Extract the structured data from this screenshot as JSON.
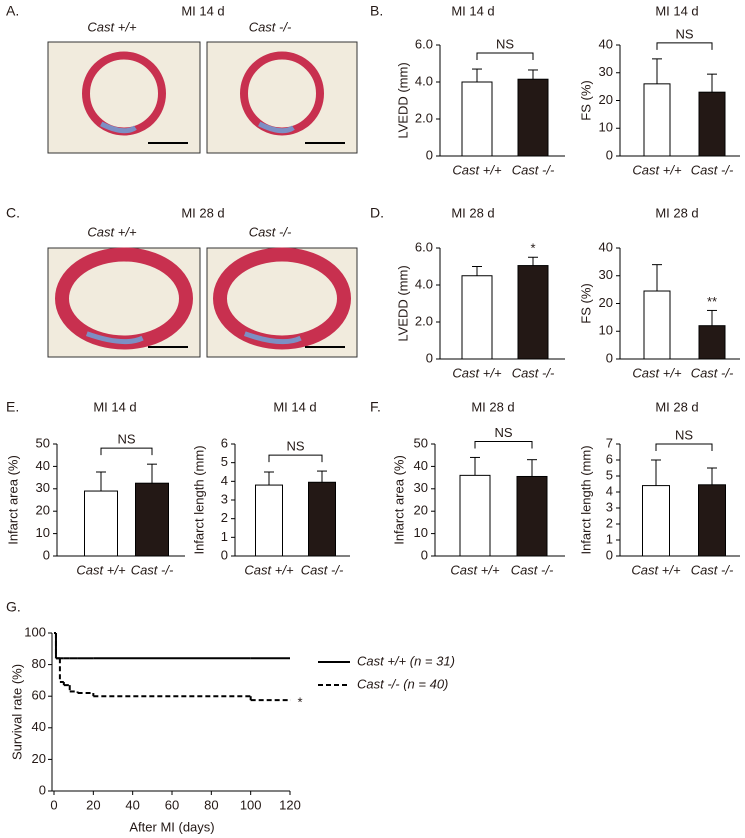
{
  "panel_labels": [
    "A.",
    "B.",
    "C.",
    "D.",
    "E.",
    "F.",
    "G."
  ],
  "images": [
    {
      "title": "MI 14 d",
      "captions": [
        "Cast +/+",
        "Cast -/-"
      ]
    },
    {
      "title": "MI 28 d",
      "captions": [
        "Cast +/+",
        "Cast -/-"
      ]
    }
  ],
  "chart_data": [
    {
      "type": "bar",
      "title": "MI 14 d",
      "ylabel": "LVEDD (mm)",
      "categories": [
        "Cast +/+",
        "Cast -/-"
      ],
      "values": [
        4.0,
        4.15
      ],
      "errors": [
        0.7,
        0.5
      ],
      "colors": [
        "#ffffff",
        "#231815"
      ],
      "ylim": [
        0,
        6
      ],
      "yticks": [
        0,
        {
          "value": 2,
          "label": "2.0"
        },
        {
          "value": 4,
          "label": "4.0"
        },
        {
          "value": 6,
          "label": "6.0"
        }
      ],
      "bracket_label": "NS"
    },
    {
      "type": "bar",
      "title": "MI 14 d",
      "ylabel": "FS (%)",
      "categories": [
        "Cast +/+",
        "Cast -/-"
      ],
      "values": [
        26,
        23
      ],
      "errors": [
        9,
        6.5
      ],
      "colors": [
        "#ffffff",
        "#231815"
      ],
      "ylim": [
        0,
        40
      ],
      "yticks": [
        0,
        10,
        20,
        30,
        40
      ],
      "bracket_label": "NS"
    },
    {
      "type": "bar",
      "title": "MI 28 d",
      "ylabel": "LVEDD (mm)",
      "categories": [
        "Cast +/+",
        "Cast -/-"
      ],
      "values": [
        4.5,
        5.05
      ],
      "errors": [
        0.5,
        0.45
      ],
      "colors": [
        "#ffffff",
        "#231815"
      ],
      "ylim": [
        0,
        6
      ],
      "yticks": [
        0,
        {
          "value": 2,
          "label": "2.0"
        },
        {
          "value": 4,
          "label": "4.0"
        },
        {
          "value": 6,
          "label": "6.0"
        }
      ],
      "value_annotations": [
        null,
        "*"
      ]
    },
    {
      "type": "bar",
      "title": "MI 28 d",
      "ylabel": "FS (%)",
      "categories": [
        "Cast +/+",
        "Cast -/-"
      ],
      "values": [
        24.5,
        12
      ],
      "errors": [
        9.5,
        5.5
      ],
      "colors": [
        "#ffffff",
        "#231815"
      ],
      "ylim": [
        0,
        40
      ],
      "yticks": [
        0,
        10,
        20,
        30,
        40
      ],
      "value_annotations": [
        null,
        "**"
      ]
    },
    {
      "type": "bar",
      "title": "MI 14 d",
      "ylabel": "Infarct area (%)",
      "categories": [
        "Cast +/+",
        "Cast -/-"
      ],
      "values": [
        29,
        32.5
      ],
      "errors": [
        8.5,
        8.5
      ],
      "colors": [
        "#ffffff",
        "#231815"
      ],
      "ylim": [
        0,
        50
      ],
      "yticks": [
        0,
        10,
        20,
        30,
        40,
        50
      ],
      "bracket_label": "NS"
    },
    {
      "type": "bar",
      "title": "MI 14 d",
      "ylabel": "Infarct length (mm)",
      "categories": [
        "Cast +/+",
        "Cast -/-"
      ],
      "values": [
        3.8,
        3.95
      ],
      "errors": [
        0.7,
        0.6
      ],
      "colors": [
        "#ffffff",
        "#231815"
      ],
      "ylim": [
        0,
        6
      ],
      "yticks": [
        0,
        1,
        2,
        3,
        4,
        5,
        6
      ],
      "bracket_label": "NS"
    },
    {
      "type": "bar",
      "title": "MI 28 d",
      "ylabel": "Infarct area (%)",
      "categories": [
        "Cast +/+",
        "Cast -/-"
      ],
      "values": [
        36,
        35.5
      ],
      "errors": [
        8,
        7.5
      ],
      "colors": [
        "#ffffff",
        "#231815"
      ],
      "ylim": [
        0,
        50
      ],
      "yticks": [
        0,
        10,
        20,
        30,
        40,
        50
      ],
      "bracket_label": "NS"
    },
    {
      "type": "bar",
      "title": "MI 28 d",
      "ylabel": "Infarct length (mm)",
      "categories": [
        "Cast +/+",
        "Cast -/-"
      ],
      "values": [
        4.4,
        4.45
      ],
      "errors": [
        1.6,
        1.05
      ],
      "colors": [
        "#ffffff",
        "#231815"
      ],
      "ylim": [
        0,
        7
      ],
      "yticks": [
        0,
        1,
        2,
        3,
        4,
        5,
        6,
        7
      ],
      "bracket_label": "NS"
    },
    {
      "type": "line",
      "xlabel": "After MI (days)",
      "ylabel": "Survival rate (%)",
      "x": [
        0,
        1,
        3,
        5,
        8,
        12,
        20,
        100,
        120
      ],
      "xlim": [
        0,
        120
      ],
      "xticks": [
        0,
        20,
        40,
        60,
        80,
        100,
        120
      ],
      "ylim": [
        0,
        100
      ],
      "yticks": [
        0,
        20,
        40,
        60,
        80,
        100
      ],
      "series": [
        {
          "name": "Cast +/+ (n = 31)",
          "color": "#000000",
          "line_style": "solid",
          "values": [
            100,
            84,
            84,
            84,
            84,
            84,
            84,
            84,
            84
          ]
        },
        {
          "name": "Cast -/- (n = 40)",
          "color": "#000000",
          "line_style": "dashed",
          "values": [
            100,
            84,
            69,
            67,
            63,
            62,
            60,
            57.5,
            57.5
          ],
          "end_annotation": "*"
        }
      ]
    }
  ]
}
